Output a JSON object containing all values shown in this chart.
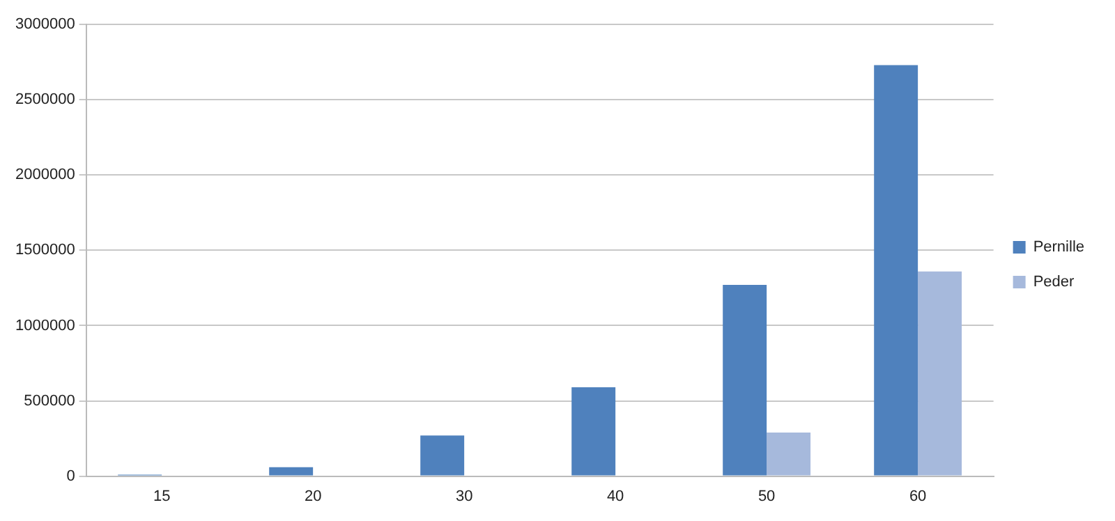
{
  "chart_data": {
    "type": "bar",
    "categories": [
      "15",
      "20",
      "30",
      "40",
      "50",
      "60"
    ],
    "series": [
      {
        "name": "Pernille",
        "color": "#4f81bd",
        "values": [
          10000,
          60000,
          270000,
          590000,
          1270000,
          2730000
        ]
      },
      {
        "name": "Peder",
        "color": "#a6b9dc",
        "values": [
          0,
          0,
          0,
          0,
          290000,
          1360000
        ]
      }
    ],
    "ylim": [
      0,
      3000000
    ],
    "yticks": [
      0,
      500000,
      1000000,
      1500000,
      2000000,
      2500000,
      3000000
    ],
    "grid": "y",
    "legend": "right"
  }
}
